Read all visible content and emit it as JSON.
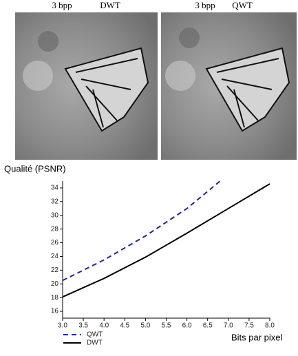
{
  "panels": [
    {
      "rate": "3 bpp",
      "method": "DWT"
    },
    {
      "rate": "3 bpp",
      "method": "QWT"
    }
  ],
  "chart_data": {
    "type": "line",
    "ylabel": "Qualité (PSNR)",
    "xlabel": "Bits par pixel",
    "xlim": [
      3,
      8
    ],
    "ylim": [
      15,
      35
    ],
    "xticks": [
      {
        "value": 3,
        "label": "3.0"
      },
      3.5,
      {
        "value": 4,
        "label": "4.0"
      },
      4.5,
      {
        "value": 5,
        "label": "5.0"
      },
      5.5,
      {
        "value": 6,
        "label": "6.0"
      },
      6.5,
      {
        "value": 7,
        "label": "7.0"
      },
      7.5,
      {
        "value": 8,
        "label": "8.0"
      }
    ],
    "yticks": [
      16,
      18,
      20,
      22,
      24,
      26,
      28,
      30,
      32,
      34
    ],
    "series": [
      {
        "name": "QWT",
        "color": "#1f1fc8",
        "dashed": true,
        "x": [
          3,
          4,
          5,
          6,
          6.8
        ],
        "values": [
          20.5,
          23.5,
          27,
          31,
          35
        ]
      },
      {
        "name": "DWT",
        "color": "#000000",
        "dashed": false,
        "x": [
          3,
          4,
          5,
          6,
          7,
          8
        ],
        "values": [
          18.1,
          20.8,
          23.9,
          27.4,
          31,
          34.6
        ]
      }
    ]
  }
}
